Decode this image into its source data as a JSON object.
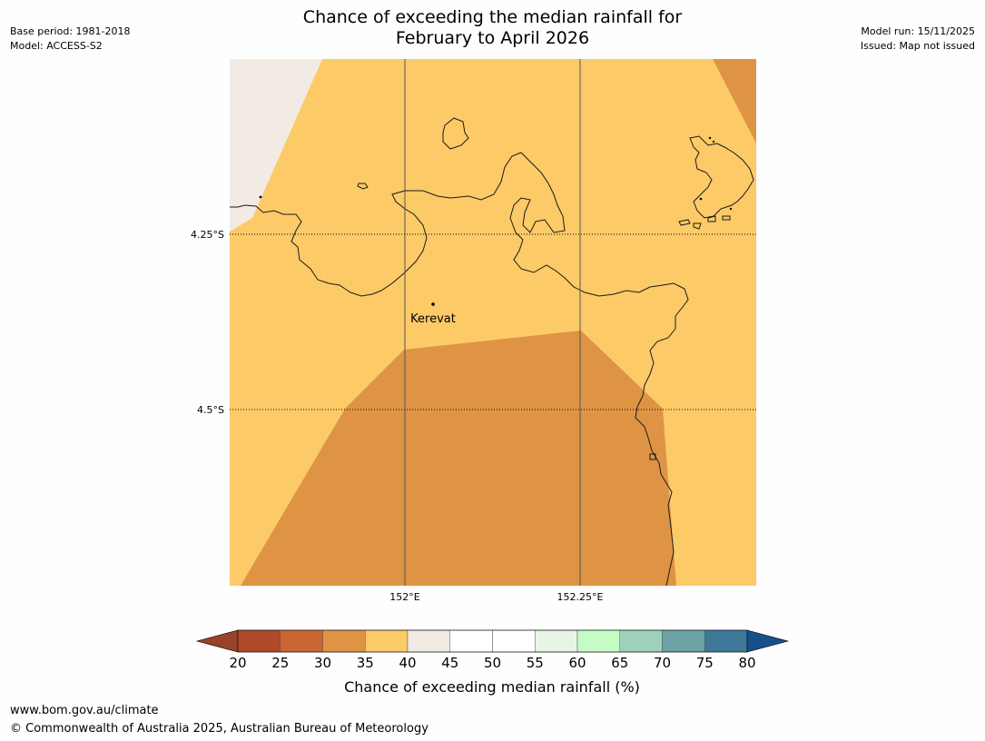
{
  "header": {
    "title_line1": "Chance of exceeding the median rainfall for",
    "title_line2": "February to April 2026",
    "base_period": "Base period: 1981-2018",
    "model": "Model: ACCESS-S2",
    "model_run": "Model run: 15/11/2025",
    "issued": "Issued: Map not issued"
  },
  "map": {
    "lat_labels": [
      "4.25°S",
      "4.5°S"
    ],
    "lon_labels": [
      "152°E",
      "152.25°E"
    ],
    "place": "Kerevat"
  },
  "legend": {
    "ticks": [
      "20",
      "25",
      "30",
      "35",
      "40",
      "45",
      "50",
      "55",
      "60",
      "65",
      "70",
      "75",
      "80"
    ],
    "colors": [
      "#b04a28",
      "#cb6633",
      "#df9445",
      "#fdca68",
      "#f2ebe4",
      "#ffffff",
      "#ffffff",
      "#e8f5e6",
      "#c6fbc5",
      "#9dd1bb",
      "#6ca3a4",
      "#3d7898"
    ],
    "under_color": "#97422a",
    "over_color": "#16508a",
    "label": "Chance of exceeding median rainfall (%)"
  },
  "footer": {
    "url": "www.bom.gov.au/climate",
    "copyright": "© Commonwealth of Australia 2025, Australian Bureau of Meteorology"
  }
}
